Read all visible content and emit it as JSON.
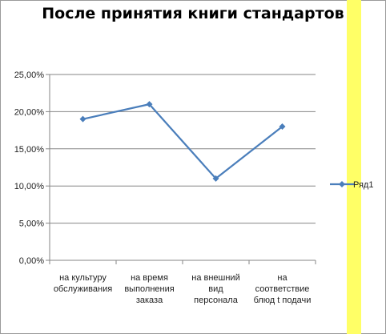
{
  "chart_data": {
    "type": "line",
    "title": "После принятия книги стандартов",
    "categories": [
      [
        "на культуру",
        "обслуживания"
      ],
      [
        "на время",
        "выполнения",
        "заказа"
      ],
      [
        "на внешний",
        "вид",
        "персонала"
      ],
      [
        "на",
        "соответствие",
        "блюд t подачи"
      ]
    ],
    "series": [
      {
        "name": "Ряд1",
        "values": [
          0.19,
          0.21,
          0.11,
          0.18
        ],
        "color": "#4a7ebb"
      }
    ],
    "ylim": [
      0,
      0.25
    ],
    "yticks": [
      0,
      0.05,
      0.1,
      0.15,
      0.2,
      0.25
    ],
    "ytick_labels": [
      "0,00%",
      "5,00%",
      "10,00%",
      "15,00%",
      "20,00%",
      "25,00%"
    ],
    "xlabel": "",
    "ylabel": "",
    "grid": true,
    "legend_position": "right"
  },
  "colors": {
    "accent_stripe": "#ffff66",
    "gridline": "#868686"
  }
}
